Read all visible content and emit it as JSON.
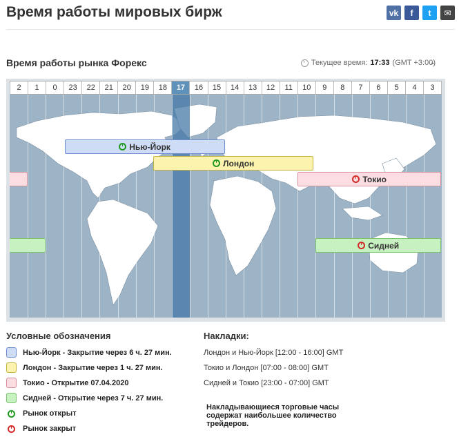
{
  "page": {
    "title": "Время работы мировых бирж"
  },
  "share": {
    "vk": "vk",
    "fb": "f",
    "tw": "t",
    "mail": "✉"
  },
  "section": {
    "title": "Время работы рынка Форекс"
  },
  "clock": {
    "label": "Текущее время:",
    "time": "17:33",
    "tz": "(GMT +3:00)",
    "dropdown_icon": "chevron-down-icon"
  },
  "hours": [
    "2",
    "1",
    "0",
    "23",
    "22",
    "21",
    "20",
    "19",
    "18",
    "17",
    "16",
    "15",
    "14",
    "13",
    "12",
    "11",
    "10",
    "9",
    "8",
    "7",
    "6",
    "5",
    "4",
    "3"
  ],
  "current_hour_index": 9,
  "markets": [
    {
      "key": "ny",
      "label": "Нью-Йорк",
      "status": "open"
    },
    {
      "key": "ldn",
      "label": "Лондон",
      "status": "open"
    },
    {
      "key": "tk",
      "label": "Токио",
      "status": "closed"
    },
    {
      "key": "sy",
      "label": "Сидней",
      "status": "closed"
    }
  ],
  "legend": {
    "title": "Условные обозначения",
    "items": [
      "Нью-Йорк - Закрытие через 6 ч. 27 мин.",
      "Лондон - Закрытие через 1 ч. 27 мин.",
      "Токио - Открытие 07.04.2020",
      "Сидней - Открытие через 7 ч. 27 мин."
    ],
    "open_label": "Рынок открыт",
    "closed_label": "Рынок закрыт"
  },
  "overlaps": {
    "title": "Накладки:",
    "items": [
      "Лондон и Нью-Йорк [12:00 - 16:00] GMT",
      "Токио и Лондон [07:00 - 08:00] GMT",
      "Сидней и Токио [23:00 - 07:00] GMT"
    ],
    "note": "Накладывающиеся торговые часы содержат наибольшее количество трейдеров."
  }
}
